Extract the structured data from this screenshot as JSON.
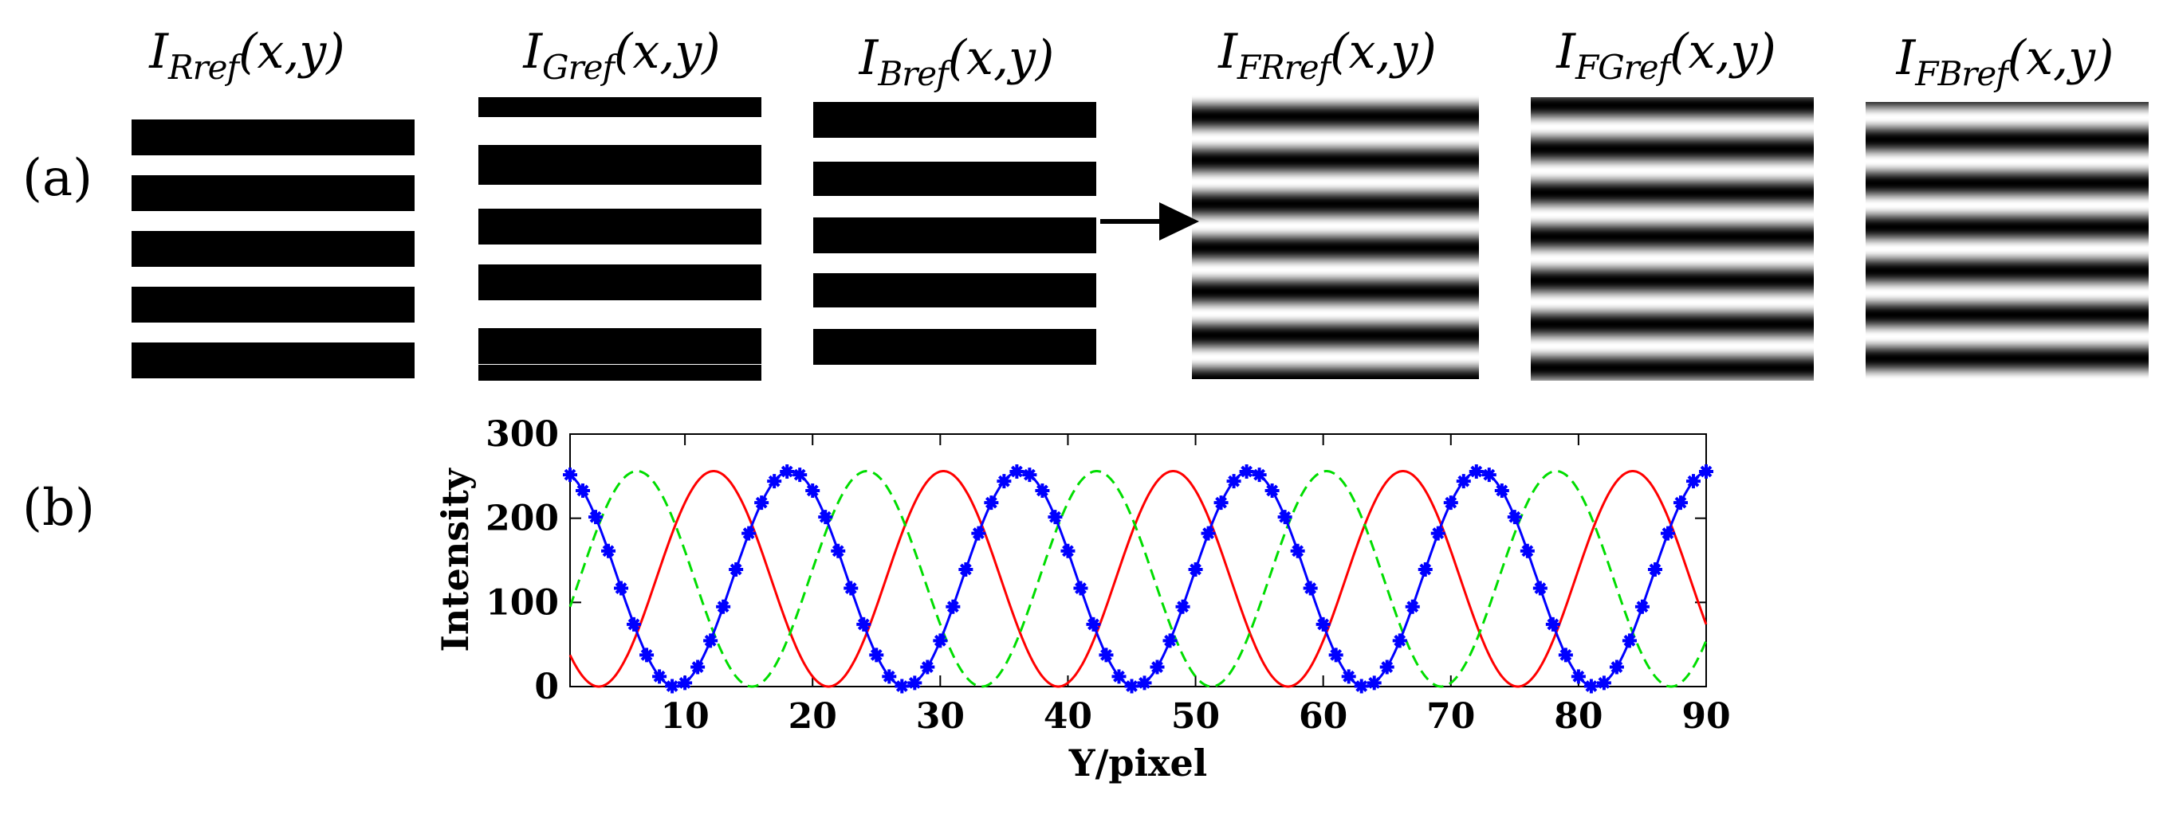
{
  "figure": {
    "panel_a_label": "(a)",
    "panel_b_label": "(b)",
    "reference_images": [
      {
        "main": "I",
        "sub": "Rref",
        "args": "(x,y)",
        "kind": "binary"
      },
      {
        "main": "I",
        "sub": "Gref",
        "args": "(x,y)",
        "kind": "binary"
      },
      {
        "main": "I",
        "sub": "Bref",
        "args": "(x,y)",
        "kind": "binary"
      },
      {
        "main": "I",
        "sub": "FRref",
        "args": "(x,y)",
        "kind": "sinusoidal"
      },
      {
        "main": "I",
        "sub": "FGref",
        "args": "(x,y)",
        "kind": "sinusoidal"
      },
      {
        "main": "I",
        "sub": "FBref",
        "args": "(x,y)",
        "kind": "sinusoidal"
      }
    ],
    "arrow": "defocus-filter-arrow"
  },
  "chart_data": {
    "type": "line",
    "title": "",
    "xlabel": "Y/pixel",
    "ylabel": "Intensity",
    "xlim": [
      1,
      90
    ],
    "ylim": [
      0,
      300
    ],
    "xticks": [
      10,
      20,
      30,
      40,
      50,
      60,
      70,
      80,
      90
    ],
    "yticks": [
      0,
      100,
      200,
      300
    ],
    "period_pixels": 18,
    "series": [
      {
        "name": "Red channel",
        "color": "#ff0000",
        "style": "solid",
        "amplitude": 128,
        "offset": 128,
        "phase_deg": -155,
        "markers": false
      },
      {
        "name": "Green channel",
        "color": "#00dd00",
        "style": "dashed",
        "amplitude": 128,
        "offset": 128,
        "phase_deg": -35,
        "markers": false
      },
      {
        "name": "Blue channel",
        "color": "#0000ff",
        "style": "solid",
        "amplitude": 128,
        "offset": 128,
        "phase_deg": 85,
        "markers": true
      }
    ]
  }
}
